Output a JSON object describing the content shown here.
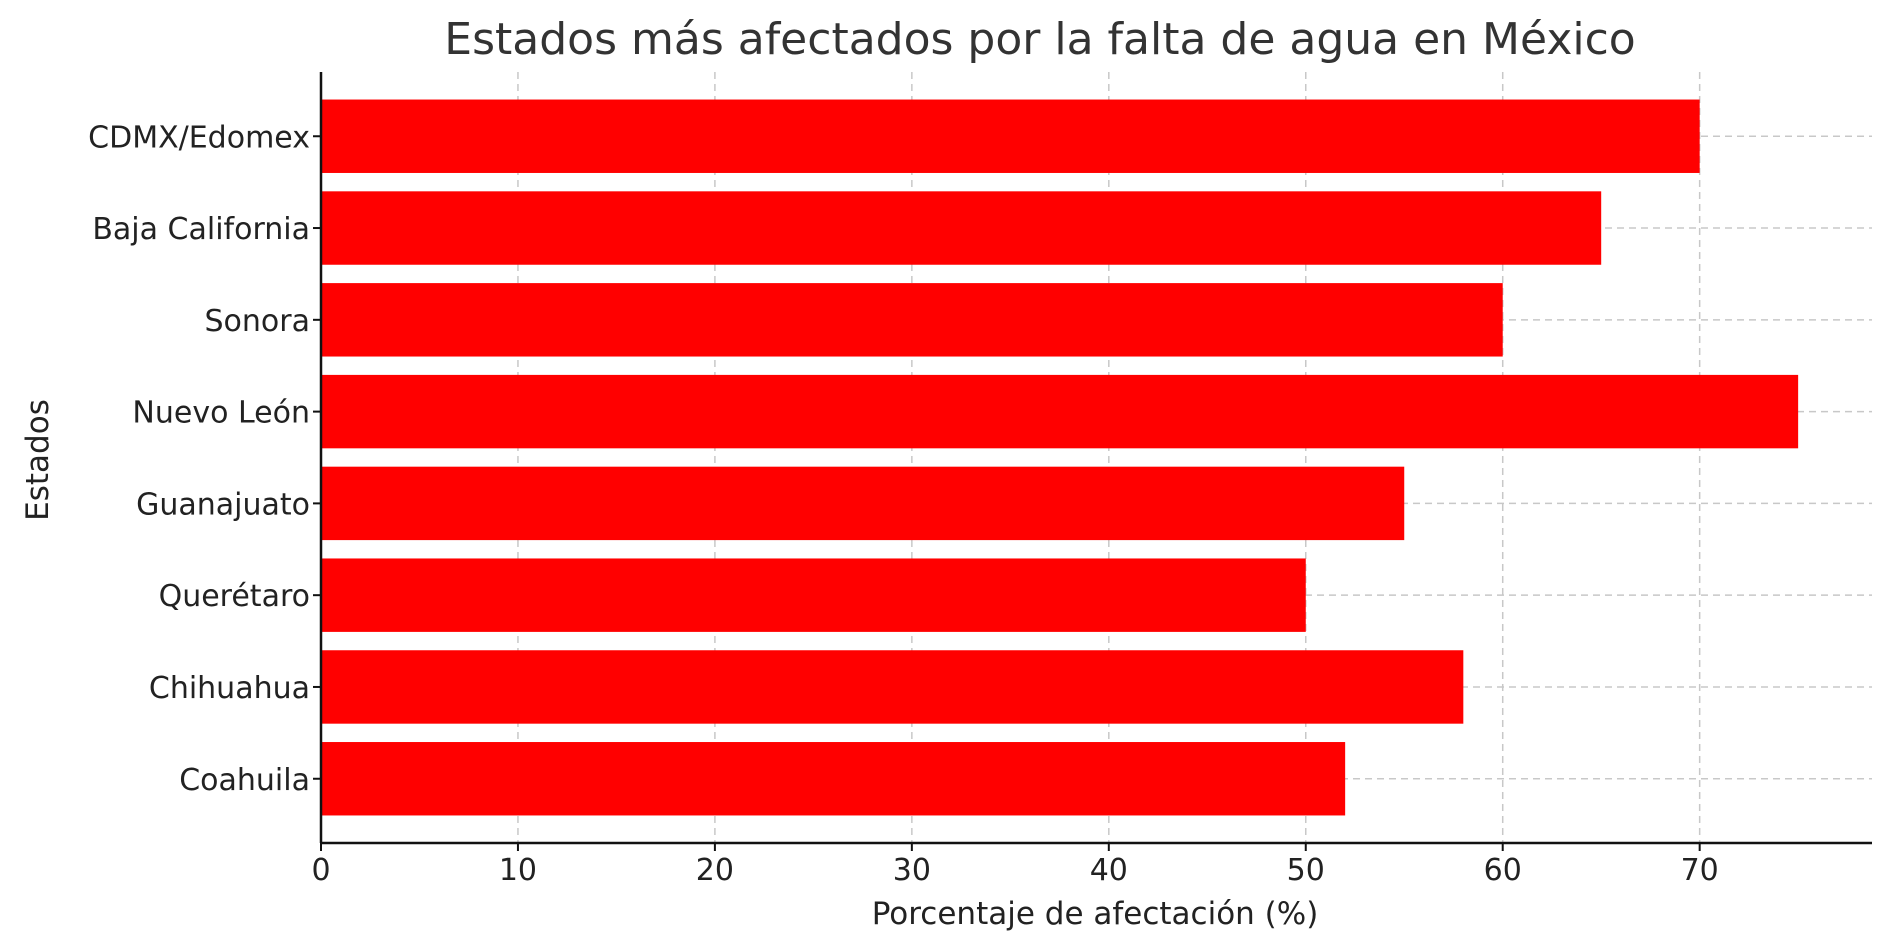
{
  "chart_data": {
    "type": "bar",
    "orientation": "horizontal",
    "title": "Estados más afectados por la falta de agua en México",
    "xlabel": "Porcentaje de afectación (%)",
    "ylabel": "Estados",
    "categories": [
      "CDMX/Edomex",
      "Baja California",
      "Sonora",
      "Nuevo León",
      "Guanajuato",
      "Querétaro",
      "Chihuahua",
      "Coahuila"
    ],
    "values": [
      70,
      65,
      60,
      75,
      55,
      50,
      58,
      52
    ],
    "xlim": [
      0,
      78.75
    ],
    "xticks": [
      "0",
      "10",
      "20",
      "30",
      "40",
      "50",
      "60",
      "70"
    ],
    "grid": true,
    "bar_color": "#ff0000",
    "grid_color": "#c8c8c8"
  }
}
